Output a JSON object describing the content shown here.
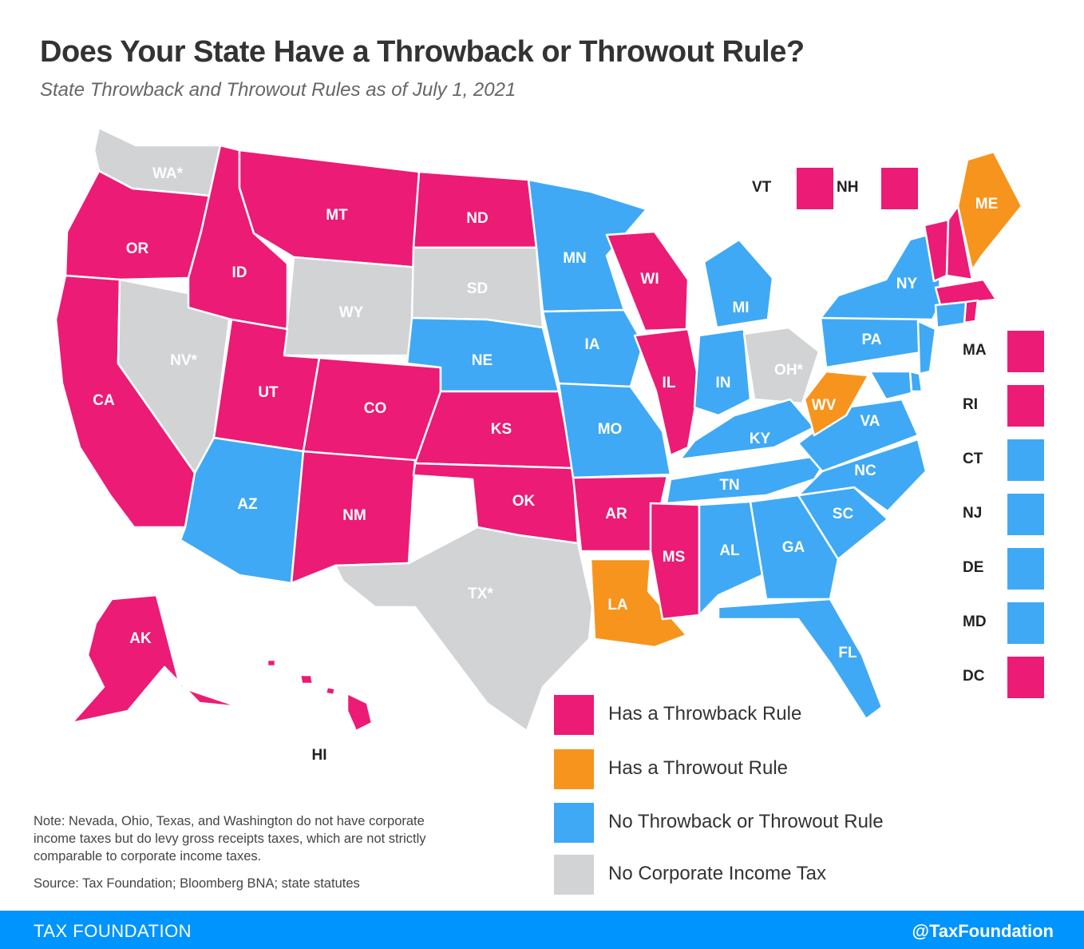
{
  "title": "Does Your State Have a Throwback or Throwout Rule?",
  "subtitle": "State Throwback and Throwout Rules as of July 1, 2021",
  "colors": {
    "throwback": "#ec1b75",
    "throwout": "#f7941d",
    "none": "#3fa9f5",
    "no_cit": "#d1d3d4"
  },
  "states": [
    {
      "id": "WA",
      "label": "WA*",
      "category": "no_cit"
    },
    {
      "id": "OR",
      "label": "OR",
      "category": "throwback"
    },
    {
      "id": "CA",
      "label": "CA",
      "category": "throwback"
    },
    {
      "id": "NV",
      "label": "NV*",
      "category": "no_cit"
    },
    {
      "id": "ID",
      "label": "ID",
      "category": "throwback"
    },
    {
      "id": "MT",
      "label": "MT",
      "category": "throwback"
    },
    {
      "id": "WY",
      "label": "WY",
      "category": "no_cit"
    },
    {
      "id": "UT",
      "label": "UT",
      "category": "throwback"
    },
    {
      "id": "AZ",
      "label": "AZ",
      "category": "none"
    },
    {
      "id": "CO",
      "label": "CO",
      "category": "throwback"
    },
    {
      "id": "NM",
      "label": "NM",
      "category": "throwback"
    },
    {
      "id": "ND",
      "label": "ND",
      "category": "throwback"
    },
    {
      "id": "SD",
      "label": "SD",
      "category": "no_cit"
    },
    {
      "id": "NE",
      "label": "NE",
      "category": "none"
    },
    {
      "id": "KS",
      "label": "KS",
      "category": "throwback"
    },
    {
      "id": "OK",
      "label": "OK",
      "category": "throwback"
    },
    {
      "id": "TX",
      "label": "TX*",
      "category": "no_cit"
    },
    {
      "id": "MN",
      "label": "MN",
      "category": "none"
    },
    {
      "id": "IA",
      "label": "IA",
      "category": "none"
    },
    {
      "id": "MO",
      "label": "MO",
      "category": "none"
    },
    {
      "id": "AR",
      "label": "AR",
      "category": "throwback"
    },
    {
      "id": "LA",
      "label": "LA",
      "category": "throwout"
    },
    {
      "id": "WI",
      "label": "WI",
      "category": "throwback"
    },
    {
      "id": "IL",
      "label": "IL",
      "category": "throwback"
    },
    {
      "id": "MI",
      "label": "MI",
      "category": "none"
    },
    {
      "id": "IN",
      "label": "IN",
      "category": "none"
    },
    {
      "id": "OH",
      "label": "OH*",
      "category": "no_cit"
    },
    {
      "id": "KY",
      "label": "KY",
      "category": "none"
    },
    {
      "id": "TN",
      "label": "TN",
      "category": "none"
    },
    {
      "id": "MS",
      "label": "MS",
      "category": "throwback"
    },
    {
      "id": "AL",
      "label": "AL",
      "category": "none"
    },
    {
      "id": "GA",
      "label": "GA",
      "category": "none"
    },
    {
      "id": "FL",
      "label": "FL",
      "category": "none"
    },
    {
      "id": "SC",
      "label": "SC",
      "category": "none"
    },
    {
      "id": "NC",
      "label": "NC",
      "category": "none"
    },
    {
      "id": "VA",
      "label": "VA",
      "category": "none"
    },
    {
      "id": "WV",
      "label": "WV",
      "category": "throwout"
    },
    {
      "id": "PA",
      "label": "PA",
      "category": "none"
    },
    {
      "id": "NY",
      "label": "NY",
      "category": "none"
    },
    {
      "id": "ME",
      "label": "ME",
      "category": "throwout"
    },
    {
      "id": "AK",
      "label": "AK",
      "category": "throwback"
    },
    {
      "id": "HI",
      "label": "HI",
      "category": "throwback"
    }
  ],
  "small_states": [
    {
      "id": "VT",
      "label": "VT",
      "category": "throwback"
    },
    {
      "id": "NH",
      "label": "NH",
      "category": "throwback"
    },
    {
      "id": "MA",
      "label": "MA",
      "category": "throwback"
    },
    {
      "id": "RI",
      "label": "RI",
      "category": "throwback"
    },
    {
      "id": "CT",
      "label": "CT",
      "category": "none"
    },
    {
      "id": "NJ",
      "label": "NJ",
      "category": "none"
    },
    {
      "id": "DE",
      "label": "DE",
      "category": "none"
    },
    {
      "id": "MD",
      "label": "MD",
      "category": "none"
    },
    {
      "id": "DC",
      "label": "DC",
      "category": "throwback"
    }
  ],
  "legend": [
    {
      "label": "Has a Throwback Rule",
      "category": "throwback"
    },
    {
      "label": "Has a Throwout Rule",
      "category": "throwout"
    },
    {
      "label": "No Throwback or Throwout Rule",
      "category": "none"
    },
    {
      "label": "No Corporate Income Tax",
      "category": "no_cit"
    }
  ],
  "note": "Note: Nevada, Ohio, Texas, and Washington do not have corporate income taxes but do levy gross receipts taxes, which are not strictly comparable to corporate income taxes.",
  "source": "Source: Tax Foundation; Bloomberg BNA; state statutes",
  "footer": {
    "brand": "TAX FOUNDATION",
    "handle": "@TaxFoundation"
  }
}
